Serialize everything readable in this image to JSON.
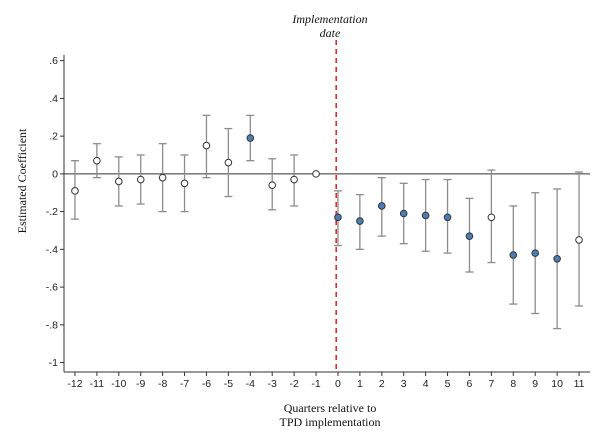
{
  "chart_data": {
    "type": "scatter",
    "subtype": "event-study coefficient plot with confidence intervals",
    "xlabel_lines": [
      "Quarters relative to",
      "TPD implementation"
    ],
    "ylabel": "Estimated Coefficient",
    "annotation_lines": [
      "Implementation",
      "date"
    ],
    "reference_line_x": -0.08,
    "reference_line_color": "#e8262a",
    "zero_line": true,
    "xlim": [
      -12.5,
      11.5
    ],
    "ylim": [
      -1.05,
      0.63
    ],
    "x_ticks": [
      -12,
      -11,
      -10,
      -9,
      -8,
      -7,
      -6,
      -5,
      -4,
      -3,
      -2,
      -1,
      0,
      1,
      2,
      3,
      4,
      5,
      6,
      7,
      8,
      9,
      10,
      11
    ],
    "x_tick_labels": [
      "-12",
      "-11",
      "-10",
      "-9",
      "-8",
      "-7",
      "-6",
      "-5",
      "-4",
      "-3",
      "-2",
      "-1",
      "0",
      "1",
      "2",
      "3",
      "4",
      "5",
      "6",
      "7",
      "8",
      "9",
      "10",
      "11"
    ],
    "y_ticks": [
      0.6,
      0.4,
      0.2,
      0,
      -0.2,
      -0.4,
      -0.6,
      -0.8,
      -1
    ],
    "y_tick_labels": [
      ".6",
      ".4",
      ".2",
      "0",
      "-.2",
      "-.4",
      "-.6",
      "-.8",
      "-1"
    ],
    "colors": {
      "significant": "#4a7fb5",
      "insignificant": "#ffffff",
      "marker_edge": "#333333",
      "ci": "#8c8c8c",
      "axis": "#333333"
    },
    "points": [
      {
        "x": -12,
        "y": -0.09,
        "lo": -0.24,
        "hi": 0.07,
        "significant": false
      },
      {
        "x": -11,
        "y": 0.07,
        "lo": -0.02,
        "hi": 0.16,
        "significant": false
      },
      {
        "x": -10,
        "y": -0.04,
        "lo": -0.17,
        "hi": 0.09,
        "significant": false
      },
      {
        "x": -9,
        "y": -0.03,
        "lo": -0.16,
        "hi": 0.1,
        "significant": false
      },
      {
        "x": -8,
        "y": -0.02,
        "lo": -0.2,
        "hi": 0.16,
        "significant": false
      },
      {
        "x": -7,
        "y": -0.05,
        "lo": -0.2,
        "hi": 0.1,
        "significant": false
      },
      {
        "x": -6,
        "y": 0.15,
        "lo": -0.02,
        "hi": 0.31,
        "significant": false
      },
      {
        "x": -5,
        "y": 0.06,
        "lo": -0.12,
        "hi": 0.24,
        "significant": false
      },
      {
        "x": -4,
        "y": 0.19,
        "lo": 0.07,
        "hi": 0.31,
        "significant": true
      },
      {
        "x": -3,
        "y": -0.06,
        "lo": -0.19,
        "hi": 0.08,
        "significant": false
      },
      {
        "x": -2,
        "y": -0.03,
        "lo": -0.17,
        "hi": 0.1,
        "significant": false
      },
      {
        "x": -1,
        "y": 0.0,
        "lo": 0.0,
        "hi": 0.0,
        "significant": false
      },
      {
        "x": 0,
        "y": -0.23,
        "lo": -0.38,
        "hi": -0.09,
        "significant": true
      },
      {
        "x": 1,
        "y": -0.25,
        "lo": -0.4,
        "hi": -0.11,
        "significant": true
      },
      {
        "x": 2,
        "y": -0.17,
        "lo": -0.33,
        "hi": -0.02,
        "significant": true
      },
      {
        "x": 3,
        "y": -0.21,
        "lo": -0.37,
        "hi": -0.05,
        "significant": true
      },
      {
        "x": 4,
        "y": -0.22,
        "lo": -0.41,
        "hi": -0.03,
        "significant": true
      },
      {
        "x": 5,
        "y": -0.23,
        "lo": -0.42,
        "hi": -0.03,
        "significant": true
      },
      {
        "x": 6,
        "y": -0.33,
        "lo": -0.52,
        "hi": -0.13,
        "significant": true
      },
      {
        "x": 7,
        "y": -0.23,
        "lo": -0.47,
        "hi": 0.02,
        "significant": false
      },
      {
        "x": 8,
        "y": -0.43,
        "lo": -0.69,
        "hi": -0.17,
        "significant": true
      },
      {
        "x": 9,
        "y": -0.42,
        "lo": -0.74,
        "hi": -0.1,
        "significant": true
      },
      {
        "x": 10,
        "y": -0.45,
        "lo": -0.82,
        "hi": -0.08,
        "significant": true
      },
      {
        "x": 11,
        "y": -0.35,
        "lo": -0.7,
        "hi": 0.01,
        "significant": false
      }
    ]
  }
}
